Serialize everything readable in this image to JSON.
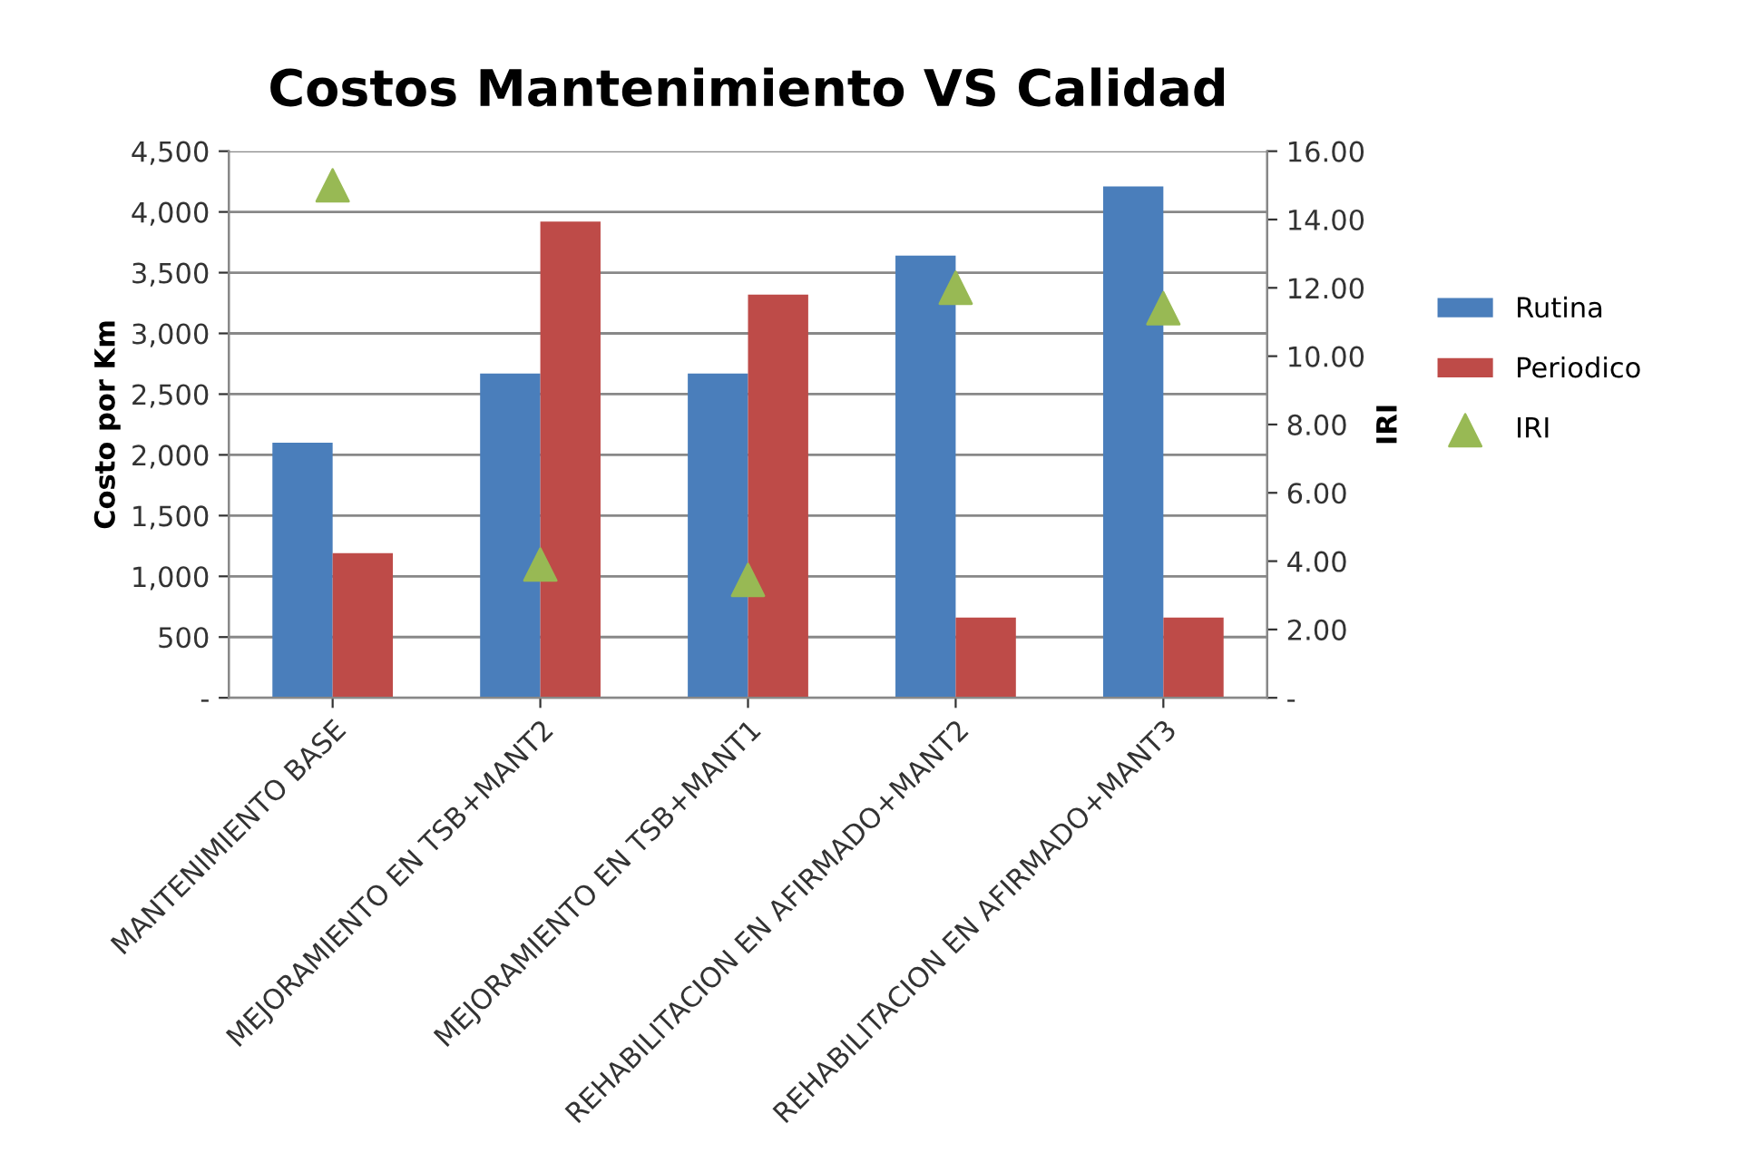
{
  "chart_data": {
    "type": "bar",
    "title": "Costos Mantenimiento VS Calidad",
    "ylabel": "Costo por Km",
    "y2label": "IRI",
    "categories": [
      "MANTENIMIENTO BASE",
      "MEJORAMIENTO EN TSB+MANT2",
      "MEJORAMIENTO EN TSB+MANT1",
      "REHABILITACION EN AFIRMADO+MANT2",
      "REHABILITACION EN AFIRMADO+MANT3"
    ],
    "series": [
      {
        "name": "Rutina",
        "color": "#4a7ebb",
        "values": [
          2100,
          2670,
          2670,
          3640,
          4210
        ]
      },
      {
        "name": "Periodico",
        "color": "#be4b48",
        "values": [
          1190,
          3920,
          3320,
          660,
          660
        ]
      },
      {
        "name": "IRI",
        "type": "scatter",
        "axis": "y2",
        "marker": "triangle",
        "color": "#98b954",
        "values": [
          15.0,
          3.9,
          3.45,
          12.0,
          11.4
        ]
      }
    ],
    "ylim": [
      0,
      4500
    ],
    "yticks": [
      {
        "value": 0,
        "label": "-"
      },
      {
        "value": 500,
        "label": "500"
      },
      {
        "value": 1000,
        "label": "1,000"
      },
      {
        "value": 1500,
        "label": "1,500"
      },
      {
        "value": 2000,
        "label": "2,000"
      },
      {
        "value": 2500,
        "label": "2,500"
      },
      {
        "value": 3000,
        "label": "3,000"
      },
      {
        "value": 3500,
        "label": "3,500"
      },
      {
        "value": 4000,
        "label": "4,000"
      },
      {
        "value": 4500,
        "label": "4,500"
      }
    ],
    "y2lim": [
      0,
      16
    ],
    "y2ticks": [
      {
        "value": 0,
        "label": "-"
      },
      {
        "value": 2,
        "label": "2.00"
      },
      {
        "value": 4,
        "label": "4.00"
      },
      {
        "value": 6,
        "label": "6.00"
      },
      {
        "value": 8,
        "label": "8.00"
      },
      {
        "value": 10,
        "label": "10.00"
      },
      {
        "value": 12,
        "label": "12.00"
      },
      {
        "value": 14,
        "label": "14.00"
      },
      {
        "value": 16,
        "label": "16.00"
      }
    ],
    "grid": "y",
    "legend": "right"
  }
}
